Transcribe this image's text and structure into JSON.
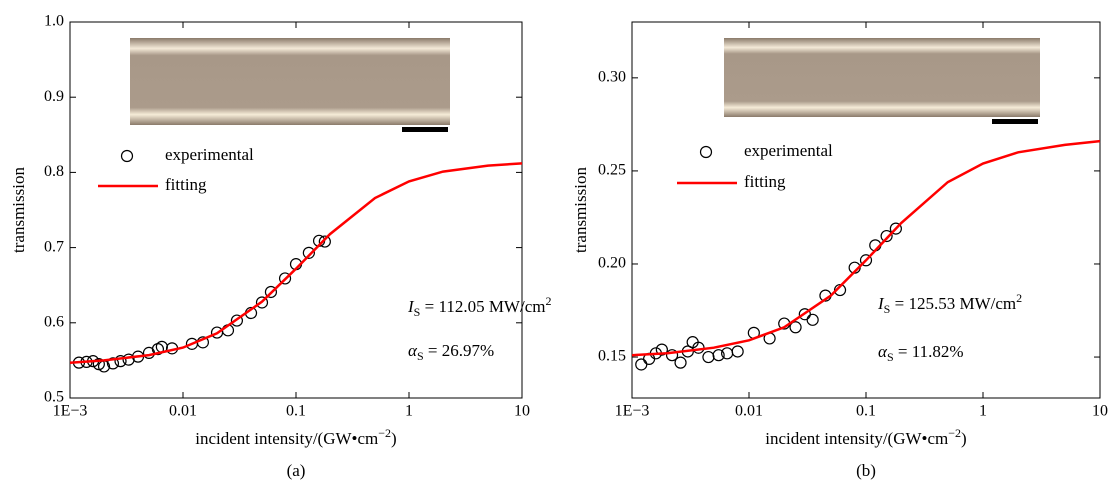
{
  "chart_data": [
    {
      "type": "scatter",
      "xscale": "log",
      "panel_label": "(a)",
      "ylabel": "transmission",
      "xlabel": {
        "text": "incident intensity/(GW•cm",
        "superscript": "−2",
        "suffix": ")"
      },
      "annotations": [
        {
          "symbol": "I",
          "subscript": "S",
          "text": " = 112.05 MW/cm",
          "superscript": "2"
        },
        {
          "symbol": "α",
          "subscript": "S",
          "text": " = 26.97%"
        }
      ],
      "xlim": [
        0.001,
        10
      ],
      "ylim": [
        0.5,
        1.0
      ],
      "xticks": [
        {
          "value": 0.001,
          "label": "1E−3"
        },
        0.01,
        0.1,
        1,
        10
      ],
      "yticks": [
        0.5,
        0.6,
        0.7,
        0.8,
        0.9,
        {
          "value": 1,
          "label": "1.0"
        }
      ],
      "legend": "upper left",
      "series": [
        {
          "name": "experimental",
          "style": "markers",
          "color": "#000000",
          "x": [
            0.0012,
            0.0014,
            0.0016,
            0.0018,
            0.002,
            0.0024,
            0.0028,
            0.0033,
            0.004,
            0.005,
            0.006,
            0.0065,
            0.008,
            0.012,
            0.015,
            0.02,
            0.025,
            0.03,
            0.04,
            0.05,
            0.06,
            0.08,
            0.1,
            0.13,
            0.16,
            0.18
          ],
          "values": [
            0.547,
            0.548,
            0.549,
            0.545,
            0.542,
            0.546,
            0.549,
            0.551,
            0.555,
            0.56,
            0.565,
            0.568,
            0.566,
            0.572,
            0.574,
            0.587,
            0.59,
            0.603,
            0.613,
            0.627,
            0.641,
            0.659,
            0.678,
            0.693,
            0.709,
            0.708
          ]
        },
        {
          "name": "fitting",
          "style": "line",
          "color": "#ff0000",
          "x": [
            0.001,
            0.002,
            0.005,
            0.01,
            0.02,
            0.05,
            0.1,
            0.2,
            0.5,
            1,
            2,
            5,
            10
          ],
          "values": [
            0.547,
            0.55,
            0.557,
            0.567,
            0.586,
            0.628,
            0.672,
            0.718,
            0.766,
            0.788,
            0.801,
            0.809,
            0.812
          ]
        }
      ]
    },
    {
      "type": "scatter",
      "xscale": "log",
      "panel_label": "(b)",
      "ylabel": "transmission",
      "xlabel": {
        "text": "incident intensity/(GW•cm",
        "superscript": "−2",
        "suffix": ")"
      },
      "annotations": [
        {
          "symbol": "I",
          "subscript": "S",
          "text": " = 125.53 MW/cm",
          "superscript": "2"
        },
        {
          "symbol": "α",
          "subscript": "S",
          "text": " = 11.82%"
        }
      ],
      "xlim": [
        0.001,
        10
      ],
      "ylim": [
        0.128,
        0.33
      ],
      "xticks": [
        {
          "value": 0.001,
          "label": "1E−3"
        },
        0.01,
        0.1,
        1,
        10
      ],
      "yticks": [
        0.15,
        {
          "value": 0.2,
          "label": "0.20"
        },
        0.25,
        {
          "value": 0.3,
          "label": "0.30"
        }
      ],
      "legend": "upper left",
      "series": [
        {
          "name": "experimental",
          "style": "markers",
          "color": "#000000",
          "x": [
            0.0012,
            0.0014,
            0.0016,
            0.0018,
            0.0022,
            0.0026,
            0.003,
            0.0033,
            0.0037,
            0.0045,
            0.0055,
            0.0065,
            0.008,
            0.011,
            0.015,
            0.02,
            0.025,
            0.03,
            0.035,
            0.045,
            0.06,
            0.08,
            0.1,
            0.12,
            0.15,
            0.18
          ],
          "values": [
            0.146,
            0.149,
            0.152,
            0.154,
            0.151,
            0.147,
            0.153,
            0.158,
            0.155,
            0.15,
            0.151,
            0.152,
            0.153,
            0.163,
            0.16,
            0.168,
            0.166,
            0.173,
            0.17,
            0.183,
            0.186,
            0.198,
            0.202,
            0.21,
            0.215,
            0.219
          ]
        },
        {
          "name": "fitting",
          "style": "line",
          "color": "#ff0000",
          "x": [
            0.001,
            0.002,
            0.005,
            0.01,
            0.02,
            0.05,
            0.1,
            0.2,
            0.5,
            1,
            2,
            5,
            10
          ],
          "values": [
            0.151,
            0.152,
            0.155,
            0.159,
            0.166,
            0.183,
            0.202,
            0.222,
            0.244,
            0.254,
            0.26,
            0.264,
            0.266
          ]
        }
      ]
    }
  ]
}
